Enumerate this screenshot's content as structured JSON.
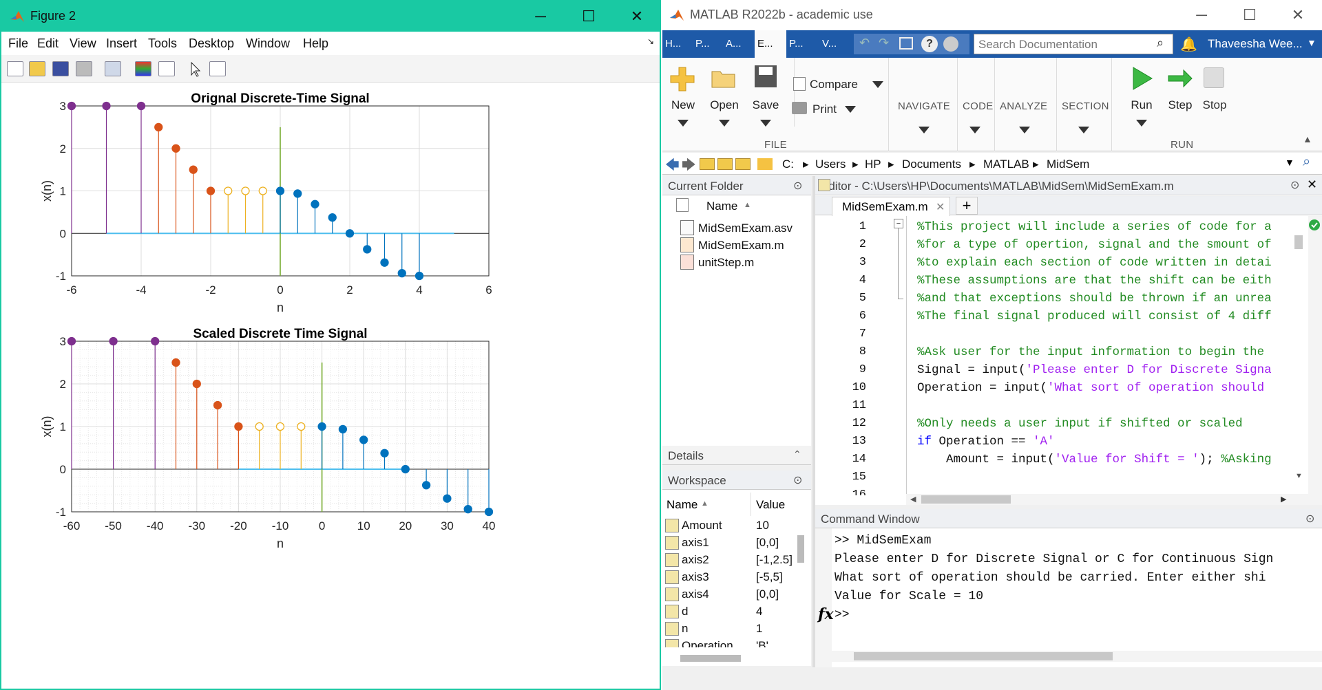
{
  "figure": {
    "title": "Figure 2",
    "menu": [
      "File",
      "Edit",
      "View",
      "Insert",
      "Tools",
      "Desktop",
      "Window",
      "Help"
    ]
  },
  "plot1": {
    "title": "Orignal Discrete-Time Signal",
    "xlabel": "n",
    "ylabel": "x(n)",
    "xticks": [
      "-6",
      "-4",
      "-2",
      "0",
      "2",
      "4",
      "6"
    ],
    "yticks": [
      "3",
      "2",
      "1",
      "0",
      "-1"
    ]
  },
  "plot2": {
    "title": "Scaled Discrete Time Signal",
    "xlabel": "n",
    "ylabel": "x(n)",
    "xticks": [
      "-60",
      "-50",
      "-40",
      "-30",
      "-20",
      "-10",
      "0",
      "10",
      "20",
      "30",
      "40"
    ],
    "yticks": [
      "3",
      "2",
      "1",
      "0",
      "-1"
    ]
  },
  "chart_data": [
    {
      "type": "stem",
      "title": "Orignal Discrete-Time Signal",
      "xlabel": "n",
      "ylabel": "x(n)",
      "xlim": [
        -6,
        6
      ],
      "ylim": [
        -1,
        3
      ],
      "grid": true,
      "series": [
        {
          "color": "#7e2f8e",
          "fill": true,
          "x": [
            -6,
            -5,
            -4
          ],
          "y": [
            3,
            3,
            3
          ]
        },
        {
          "color": "#d95319",
          "fill": true,
          "x": [
            -3.5,
            -3,
            -2.5,
            -2
          ],
          "y": [
            2.5,
            2,
            1.5,
            1
          ]
        },
        {
          "color": "#edb120",
          "fill": false,
          "x": [
            -1.5,
            -1,
            -0.5
          ],
          "y": [
            1,
            1,
            1
          ]
        },
        {
          "color": "#0072bd",
          "fill": true,
          "x": [
            0,
            0.5,
            1,
            1.5,
            2,
            2.5,
            3,
            3.5,
            4
          ],
          "y": [
            1,
            0.9375,
            0.6875,
            0.375,
            0,
            -0.375,
            -0.6875,
            -0.9375,
            -1
          ]
        }
      ],
      "baseline": {
        "color": "#4dbeee",
        "from": -5,
        "to": 5
      },
      "vline": {
        "x": 0,
        "color": "#77ac30",
        "y1": -1,
        "y2": 2.5
      }
    },
    {
      "type": "stem",
      "title": "Scaled Discrete Time Signal",
      "xlabel": "n",
      "ylabel": "x(n)",
      "xlim": [
        -60,
        40
      ],
      "ylim": [
        -1,
        3
      ],
      "grid": true,
      "series": [
        {
          "color": "#7e2f8e",
          "fill": true,
          "x": [
            -60,
            -50,
            -40
          ],
          "y": [
            3,
            3,
            3
          ]
        },
        {
          "color": "#d95319",
          "fill": true,
          "x": [
            -35,
            -30,
            -25,
            -20
          ],
          "y": [
            2.5,
            2,
            1.5,
            1
          ]
        },
        {
          "color": "#edb120",
          "fill": false,
          "x": [
            -15,
            -10,
            -5
          ],
          "y": [
            1,
            1,
            1
          ]
        },
        {
          "color": "#0072bd",
          "fill": true,
          "x": [
            0,
            5,
            10,
            15,
            20,
            25,
            30,
            35,
            40
          ],
          "y": [
            1,
            0.9375,
            0.6875,
            0.375,
            0,
            -0.375,
            -0.6875,
            -0.9375,
            -1
          ]
        }
      ],
      "baseline": {
        "color": "#4dbeee",
        "from": -20,
        "to": 20
      },
      "vline": {
        "x": 0,
        "color": "#77ac30",
        "y1": -1,
        "y2": 2.5
      }
    }
  ],
  "matlab": {
    "title": "MATLAB R2022b - academic use",
    "tabs": [
      "H...",
      "P...",
      "A...",
      "E...",
      "P...",
      "V..."
    ],
    "search_placeholder": "Search Documentation",
    "user": "Thaveesha Wee...",
    "ribbon": {
      "new": "New",
      "open": "Open",
      "save": "Save",
      "compare": "Compare",
      "print": "Print",
      "file": "FILE",
      "navigate": "NAVIGATE",
      "code": "CODE",
      "analyze": "ANALYZE",
      "section": "SECTION",
      "run": "Run",
      "step": "Step",
      "stop": "Stop",
      "run_section": "RUN"
    },
    "path": [
      "C:",
      "Users",
      "HP",
      "Documents",
      "MATLAB",
      "MidSem"
    ],
    "current_folder": {
      "title": "Current Folder",
      "col": "Name",
      "files": [
        "MidSemExam.asv",
        "MidSemExam.m",
        "unitStep.m"
      ],
      "details": "Details"
    },
    "workspace": {
      "title": "Workspace",
      "col_name": "Name",
      "col_value": "Value",
      "rows": [
        [
          "Amount",
          "10"
        ],
        [
          "axis1",
          "[0,0]"
        ],
        [
          "axis2",
          "[-1,2.5]"
        ],
        [
          "axis3",
          "[-5,5]"
        ],
        [
          "axis4",
          "[0,0]"
        ],
        [
          "d",
          "4"
        ],
        [
          "n",
          "1"
        ],
        [
          "Operation",
          "'B'"
        ]
      ]
    },
    "editor": {
      "title": "Editor - C:\\Users\\HP\\Documents\\MATLAB\\MidSem\\MidSemExam.m",
      "tab": "MidSemExam.m",
      "lines": [
        "%This project will include a series of code for a",
        "%for a type of opertion, signal and the smount of",
        "%to explain each section of code written in detai",
        "%These assumptions are that the shift can be eith",
        "%and that exceptions should be thrown if an unrea",
        "%The final signal produced will consist of 4 diff",
        "",
        "%Ask user for the input information to begin the",
        "Signal = input('Please enter D for Discrete Signa",
        "Operation = input('What sort of operation should",
        "",
        "%Only needs a user input if shifted or scaled",
        "if Operation == 'A'",
        "    Amount = input('Value for Shift = '); %Asking",
        "",
        ""
      ]
    },
    "command": {
      "title": "Command Window",
      "lines": [
        ">> MidSemExam",
        "Please enter D for Discrete Signal or C for Continuous Sign",
        "What sort of operation should be carried. Enter either shi",
        "Value for Scale = 10"
      ],
      "prompt": ">>",
      "fx": "fx"
    }
  }
}
